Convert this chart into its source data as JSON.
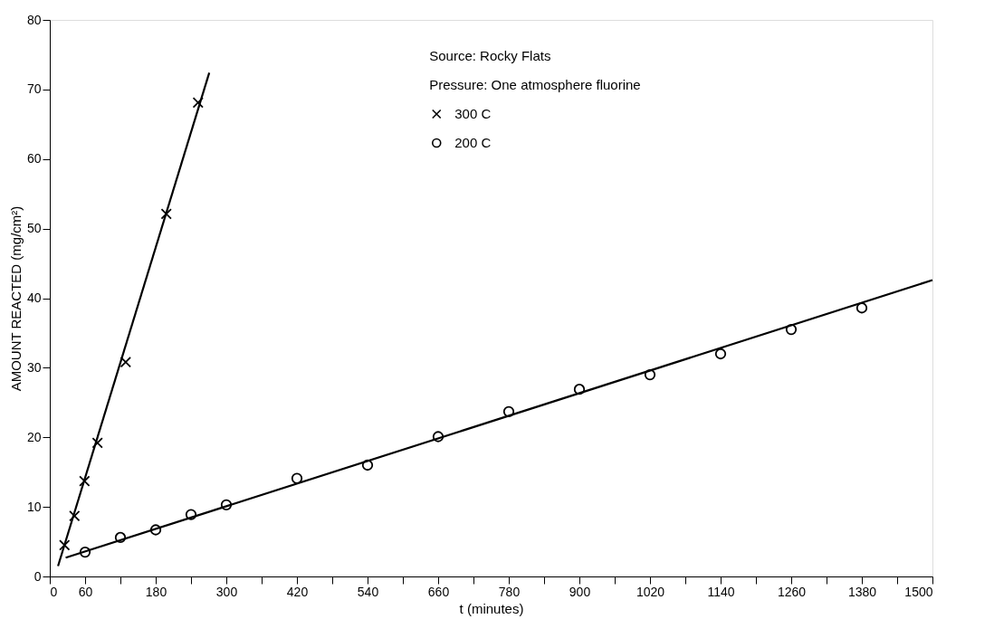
{
  "chart_data": {
    "type": "scatter",
    "xlabel": "t (minutes)",
    "ylabel": "AMOUNT REACTED (mg/cm²)",
    "annotations": [
      "Source: Rocky Flats",
      "Pressure: One atmosphere fluorine"
    ],
    "xlim": [
      0,
      1500
    ],
    "ylim": [
      0,
      80
    ],
    "xticks": [
      0,
      60,
      {
        "value": 120,
        "label": null
      },
      180,
      {
        "value": 240,
        "label": null
      },
      300,
      {
        "value": 360,
        "label": null
      },
      420,
      {
        "value": 480,
        "label": null
      },
      540,
      {
        "value": 600,
        "label": null
      },
      660,
      {
        "value": 720,
        "label": null
      },
      780,
      {
        "value": 840,
        "label": null
      },
      900,
      {
        "value": 960,
        "label": null
      },
      1020,
      {
        "value": 1080,
        "label": null
      },
      1140,
      {
        "value": 1200,
        "label": null
      },
      1260,
      {
        "value": 1320,
        "label": null
      },
      1380,
      {
        "value": 1440,
        "label": null
      },
      1500
    ],
    "yticks": [
      0,
      10,
      20,
      30,
      40,
      50,
      60,
      70,
      80
    ],
    "grid": false,
    "legend": "top",
    "series": [
      {
        "name": "300 C",
        "type": "scatter",
        "marker": "cross",
        "color": "#000000",
        "x": [
          25,
          42,
          59,
          81,
          129,
          198,
          252
        ],
        "values": [
          4.5,
          8.7,
          13.7,
          19.2,
          30.8,
          52.1,
          68.1
        ]
      },
      {
        "name": "200 C",
        "type": "scatter",
        "marker": "circle",
        "color": "#000000",
        "x": [
          60,
          120,
          180,
          240,
          300,
          420,
          540,
          660,
          780,
          900,
          1020,
          1140,
          1260,
          1380
        ],
        "values": [
          3.5,
          5.6,
          6.7,
          8.9,
          10.3,
          14.1,
          16.0,
          20.1,
          23.7,
          26.9,
          29.0,
          32.0,
          35.5,
          38.6
        ]
      },
      {
        "type": "line",
        "color": "#000000",
        "line_style": "solid",
        "x": [
          14,
          271
        ],
        "values": [
          1.5,
          72.4
        ]
      },
      {
        "type": "line",
        "color": "#000000",
        "line_style": "solid",
        "x": [
          27,
          1500
        ],
        "values": [
          2.7,
          42.6
        ]
      }
    ]
  }
}
